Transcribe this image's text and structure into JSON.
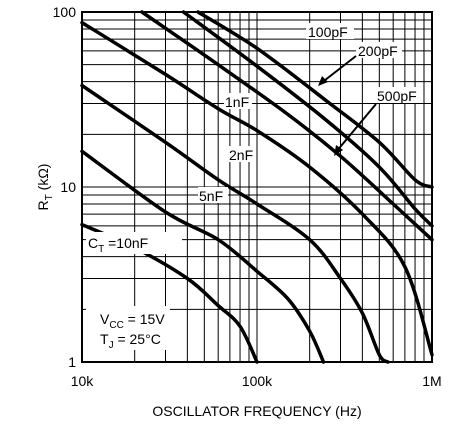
{
  "chart_data": {
    "type": "line",
    "title": "",
    "xlabel": "OSCILLATOR FREQUENCY (Hz)",
    "ylabel": "R",
    "ylabel_sub": "T",
    "ylabel_unit": " (kΩ)",
    "x_scale": "log",
    "y_scale": "log",
    "xlim": [
      10000,
      1000000
    ],
    "ylim": [
      1,
      100
    ],
    "grid": true,
    "x_ticks": [
      {
        "value": 10000,
        "label": "10k"
      },
      {
        "value": 100000,
        "label": "100k"
      },
      {
        "value": 1000000,
        "label": "1M"
      }
    ],
    "y_ticks": [
      {
        "value": 1,
        "label": "1"
      },
      {
        "value": 10,
        "label": "10"
      },
      {
        "value": 100,
        "label": "100"
      }
    ],
    "series": [
      {
        "name": "100pF",
        "points": [
          [
            22000,
            100
          ],
          [
            60000,
            50
          ],
          [
            150000,
            26
          ],
          [
            300000,
            15
          ],
          [
            600000,
            8
          ],
          [
            1000000,
            5
          ]
        ]
      },
      {
        "name": "200pF",
        "points": [
          [
            38000,
            100
          ],
          [
            100000,
            49
          ],
          [
            250000,
            24
          ],
          [
            500000,
            13
          ],
          [
            800000,
            7.5
          ],
          [
            1000000,
            6
          ]
        ]
      },
      {
        "name": "500pF",
        "points": [
          [
            46000,
            100
          ],
          [
            100000,
            62
          ],
          [
            250000,
            31
          ],
          [
            500000,
            18
          ],
          [
            800000,
            11
          ],
          [
            1000000,
            10
          ]
        ]
      },
      {
        "name": "1nF",
        "points": [
          [
            10000,
            87
          ],
          [
            30000,
            44
          ],
          [
            60000,
            28
          ],
          [
            100000,
            21
          ],
          [
            200000,
            13
          ],
          [
            400000,
            7
          ],
          [
            700000,
            3.5
          ],
          [
            1000000,
            1.1
          ]
        ]
      },
      {
        "name": "2nF",
        "points": [
          [
            10000,
            38
          ],
          [
            30000,
            18
          ],
          [
            60000,
            11
          ],
          [
            100000,
            8
          ],
          [
            200000,
            5
          ],
          [
            300000,
            3
          ],
          [
            400000,
            1.9
          ],
          [
            500000,
            1.1
          ],
          [
            560000,
            1
          ]
        ]
      },
      {
        "name": "5nF",
        "points": [
          [
            10000,
            16
          ],
          [
            30000,
            7.2
          ],
          [
            60000,
            5
          ],
          [
            100000,
            3.3
          ],
          [
            150000,
            2.3
          ],
          [
            200000,
            1.5
          ],
          [
            240000,
            1
          ]
        ]
      },
      {
        "name": "10nF",
        "points": [
          [
            10000,
            6.1
          ],
          [
            20000,
            4.5
          ],
          [
            40000,
            3
          ],
          [
            60000,
            2.1
          ],
          [
            80000,
            1.6
          ],
          [
            100000,
            1
          ]
        ]
      }
    ],
    "labels": [
      {
        "text": "100pF"
      },
      {
        "text": "200pF"
      },
      {
        "text": "500pF"
      },
      {
        "text": "1nF"
      },
      {
        "text": "2nF"
      },
      {
        "text": "5nF"
      }
    ],
    "ct_label": {
      "prefix": "C",
      "sub": "T",
      "suffix": " =10nF"
    },
    "conditions": [
      {
        "prefix": "V",
        "sub": "CC",
        "suffix": " = 15V"
      },
      {
        "prefix": "T",
        "sub": "J",
        "suffix": " = 25°C"
      }
    ]
  }
}
